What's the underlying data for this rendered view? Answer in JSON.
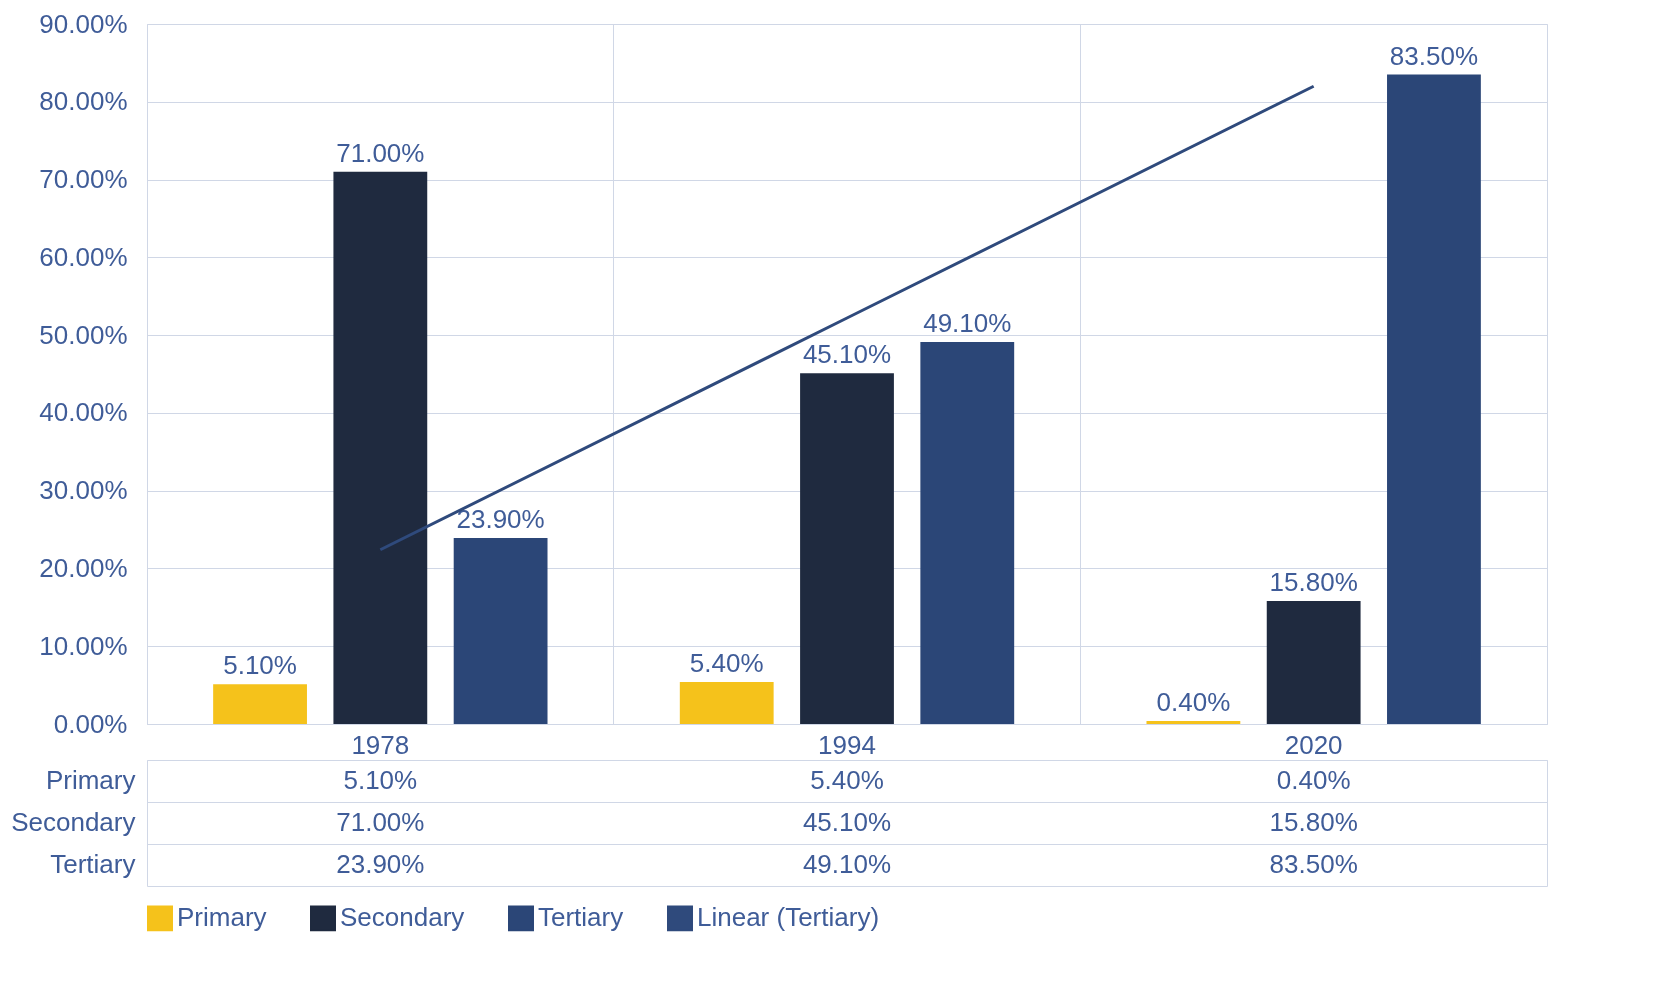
{
  "chart_data": {
    "type": "bar",
    "categories": [
      "1978",
      "1994",
      "2020"
    ],
    "series": [
      {
        "name": "Primary",
        "color": "#f5c21b",
        "values": [
          5.1,
          5.4,
          0.4
        ],
        "value_labels": [
          "5.10%",
          "5.40%",
          "0.40%"
        ]
      },
      {
        "name": "Secondary",
        "color": "#1f2a3f",
        "values": [
          71.0,
          45.1,
          15.8
        ],
        "value_labels": [
          "71.00%",
          "45.10%",
          "15.80%"
        ]
      },
      {
        "name": "Tertiary",
        "color": "#2b4677",
        "values": [
          23.9,
          49.1,
          83.5
        ],
        "value_labels": [
          "23.90%",
          "49.10%",
          "83.50%"
        ]
      },
      {
        "name": "Linear (Tertiary)",
        "type": "line",
        "color": "#2f4a7c",
        "values": [
          22.4,
          52.2,
          82.0
        ]
      }
    ],
    "ylim": [
      0,
      90
    ],
    "yticks": [
      {
        "value": 0,
        "label": "0.00%"
      },
      {
        "value": 10,
        "label": "10.00%"
      },
      {
        "value": 20,
        "label": "20.00%"
      },
      {
        "value": 30,
        "label": "30.00%"
      },
      {
        "value": 40,
        "label": "40.00%"
      },
      {
        "value": 50,
        "label": "50.00%"
      },
      {
        "value": 60,
        "label": "60.00%"
      },
      {
        "value": 70,
        "label": "70.00%"
      },
      {
        "value": 80,
        "label": "80.00%"
      },
      {
        "value": 90,
        "label": "90.00%"
      }
    ],
    "grid": "y",
    "legend": "bottom"
  }
}
